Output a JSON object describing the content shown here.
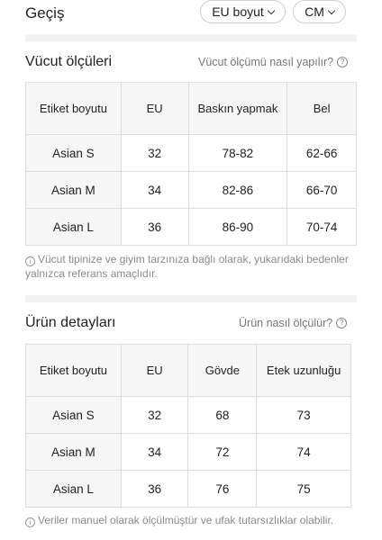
{
  "header": {
    "title": "Geçiş",
    "size_system": "EU boyut",
    "unit": "CM"
  },
  "body_measurements": {
    "title": "Vücut ölçüleri",
    "help_link": "Vücut ölçümü nasıl yapılır?",
    "columns": [
      "Etiket boyutu",
      "EU",
      "Baskın yapmak",
      "Bel"
    ],
    "rows": [
      [
        "Asian S",
        "32",
        "78-82",
        "62-66"
      ],
      [
        "Asian M",
        "34",
        "82-86",
        "66-70"
      ],
      [
        "Asian L",
        "36",
        "86-90",
        "70-74"
      ]
    ],
    "note": "Vücut tipinize ve giyim tarzınıza bağlı olarak, yukarıdaki bedenler yalnızca referans amaçlıdır."
  },
  "product_details": {
    "title": "Ürün detayları",
    "help_link": "Ürün nasıl ölçülür?",
    "columns": [
      "Etiket boyutu",
      "EU",
      "Gövde",
      "Etek uzunluğu"
    ],
    "rows": [
      [
        "Asian S",
        "32",
        "68",
        "73"
      ],
      [
        "Asian M",
        "34",
        "72",
        "74"
      ],
      [
        "Asian L",
        "36",
        "76",
        "75"
      ]
    ],
    "note": "Veriler manuel olarak ölçülmüştür ve ufak tutarsızlıklar olabilir."
  }
}
